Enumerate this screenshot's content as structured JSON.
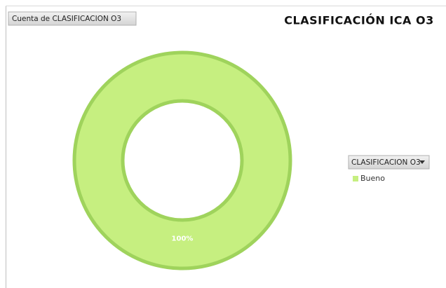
{
  "chart_data": {
    "type": "donut",
    "title": "CLASIFICACIÓN ICA O3",
    "value_field": "Cuenta de CLASIFICACION O3",
    "legend_title": "CLASIFICACION O3",
    "categories": [
      "Bueno"
    ],
    "values": [
      100
    ],
    "value_labels": [
      "100%"
    ],
    "colors": [
      "#c6ef80"
    ],
    "legend": "right"
  }
}
